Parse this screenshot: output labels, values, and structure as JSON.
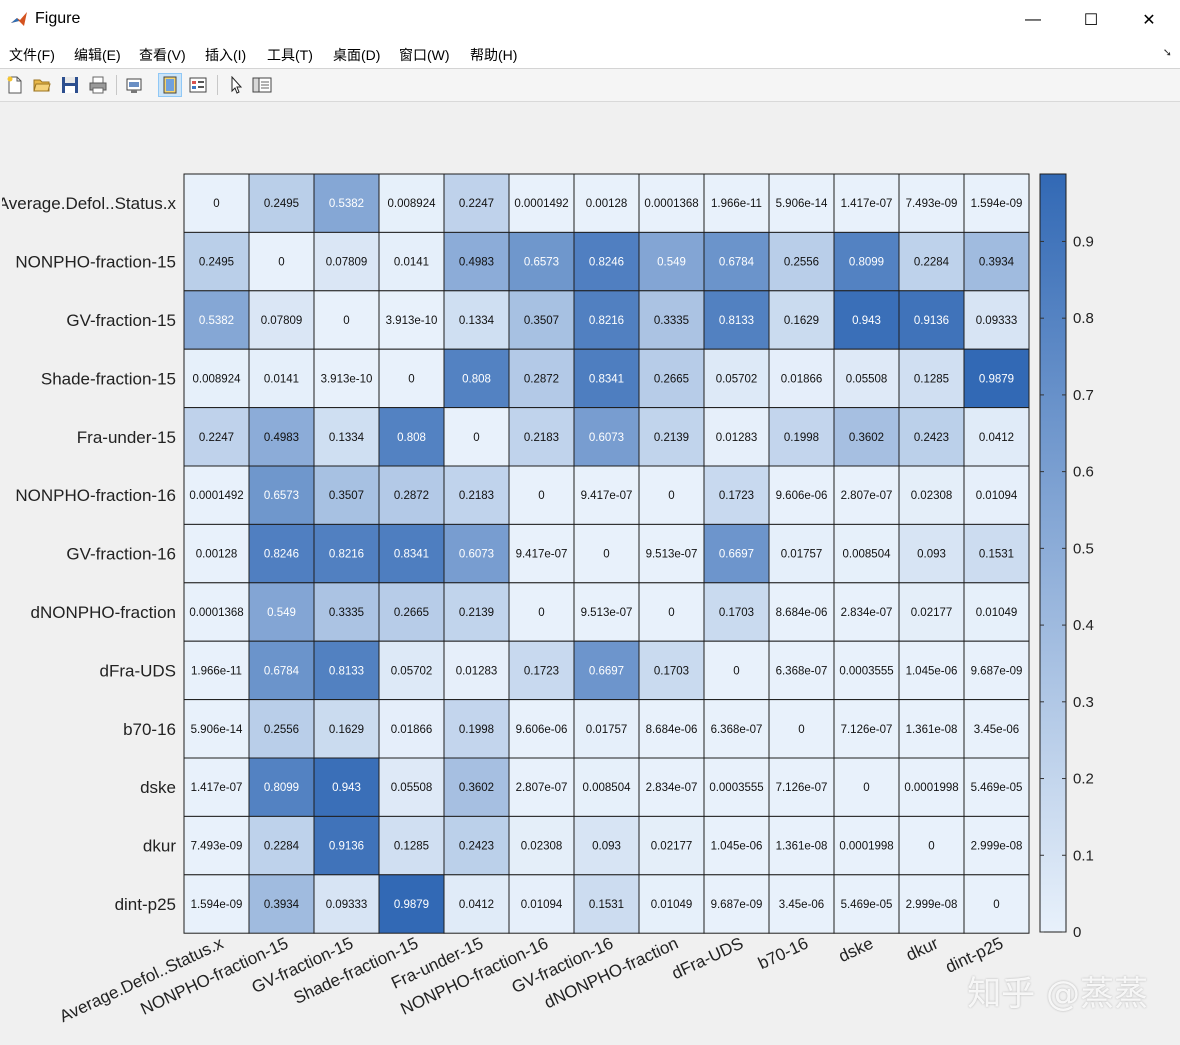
{
  "window": {
    "title": "Figure",
    "controls": {
      "minimize": "—",
      "maximize": "☐",
      "close": "✕"
    }
  },
  "menu": [
    "文件(F)",
    "编辑(E)",
    "查看(V)",
    "插入(I)",
    "工具(T)",
    "桌面(D)",
    "窗口(W)",
    "帮助(H)"
  ],
  "toolbar": [
    "new-figure-icon",
    "open-file-icon",
    "save-icon",
    "print-icon",
    "link-plot-icon",
    "hide-plot-tools-icon",
    "show-plot-tools-icon",
    "pointer-icon",
    "property-inspector-icon"
  ],
  "watermark": "知乎 @蒸蒸",
  "colors": {
    "low": "#e8f1fb",
    "high": "#3269b5",
    "grid": "#222222"
  },
  "chart_data": {
    "type": "heatmap",
    "labels": [
      "Average.Defol..Status.x",
      "NONPHO-fraction-15",
      "GV-fraction-15",
      "Shade-fraction-15",
      "Fra-under-15",
      "NONPHO-fraction-16",
      "GV-fraction-16",
      "dNONPHO-fraction",
      "dFra-UDS",
      "b70-16",
      "dske",
      "dkur",
      "dint-p25"
    ],
    "values": [
      [
        0,
        0.2495,
        0.5382,
        0.008924,
        0.2247,
        0.0001492,
        0.00128,
        0.0001368,
        1.966e-11,
        5.906e-14,
        1.417e-07,
        7.493e-09,
        1.594e-09
      ],
      [
        0.2495,
        0,
        0.07809,
        0.0141,
        0.4983,
        0.6573,
        0.8246,
        0.549,
        0.6784,
        0.2556,
        0.8099,
        0.2284,
        0.3934
      ],
      [
        0.5382,
        0.07809,
        0,
        3.913e-10,
        0.1334,
        0.3507,
        0.8216,
        0.3335,
        0.8133,
        0.1629,
        0.943,
        0.9136,
        0.09333
      ],
      [
        0.008924,
        0.0141,
        3.913e-10,
        0,
        0.808,
        0.2872,
        0.8341,
        0.2665,
        0.05702,
        0.01866,
        0.05508,
        0.1285,
        0.9879
      ],
      [
        0.2247,
        0.4983,
        0.1334,
        0.808,
        0,
        0.2183,
        0.6073,
        0.2139,
        0.01283,
        0.1998,
        0.3602,
        0.2423,
        0.0412
      ],
      [
        0.0001492,
        0.6573,
        0.3507,
        0.2872,
        0.2183,
        0,
        9.417e-07,
        0,
        0.1723,
        9.606e-06,
        2.807e-07,
        0.02308,
        0.01094
      ],
      [
        0.00128,
        0.8246,
        0.8216,
        0.8341,
        0.6073,
        9.417e-07,
        0,
        9.513e-07,
        0.6697,
        0.01757,
        0.008504,
        0.093,
        0.1531
      ],
      [
        0.0001368,
        0.549,
        0.3335,
        0.2665,
        0.2139,
        0,
        9.513e-07,
        0,
        0.1703,
        8.684e-06,
        2.834e-07,
        0.02177,
        0.01049
      ],
      [
        1.966e-11,
        0.6784,
        0.8133,
        0.05702,
        0.01283,
        0.1723,
        0.6697,
        0.1703,
        0,
        6.368e-07,
        0.0003555,
        1.045e-06,
        9.687e-09
      ],
      [
        5.906e-14,
        0.2556,
        0.1629,
        0.01866,
        0.1998,
        9.606e-06,
        0.01757,
        8.684e-06,
        6.368e-07,
        0,
        7.126e-07,
        1.361e-08,
        3.45e-06
      ],
      [
        1.417e-07,
        0.8099,
        0.943,
        0.05508,
        0.3602,
        2.807e-07,
        0.008504,
        2.834e-07,
        0.0003555,
        7.126e-07,
        0,
        0.0001998,
        5.469e-05
      ],
      [
        7.493e-09,
        0.2284,
        0.9136,
        0.1285,
        0.2423,
        0.02308,
        0.093,
        0.02177,
        1.045e-06,
        1.361e-08,
        0.0001998,
        0,
        2.999e-08
      ],
      [
        1.594e-09,
        0.3934,
        0.09333,
        0.9879,
        0.0412,
        0.01094,
        0.1531,
        0.01049,
        9.687e-09,
        3.45e-06,
        5.469e-05,
        2.999e-08,
        0
      ]
    ],
    "cell_text": [
      [
        "0",
        "0.2495",
        "0.5382",
        "0.008924",
        "0.2247",
        "0.0001492",
        "0.00128",
        "0.0001368",
        "1.966e-11",
        "5.906e-14",
        "1.417e-07",
        "7.493e-09",
        "1.594e-09"
      ],
      [
        "0.2495",
        "0",
        "0.07809",
        "0.0141",
        "0.4983",
        "0.6573",
        "0.8246",
        "0.549",
        "0.6784",
        "0.2556",
        "0.8099",
        "0.2284",
        "0.3934"
      ],
      [
        "0.5382",
        "0.07809",
        "0",
        "3.913e-10",
        "0.1334",
        "0.3507",
        "0.8216",
        "0.3335",
        "0.8133",
        "0.1629",
        "0.943",
        "0.9136",
        "0.09333"
      ],
      [
        "0.008924",
        "0.0141",
        "3.913e-10",
        "0",
        "0.808",
        "0.2872",
        "0.8341",
        "0.2665",
        "0.05702",
        "0.01866",
        "0.05508",
        "0.1285",
        "0.9879"
      ],
      [
        "0.2247",
        "0.4983",
        "0.1334",
        "0.808",
        "0",
        "0.2183",
        "0.6073",
        "0.2139",
        "0.01283",
        "0.1998",
        "0.3602",
        "0.2423",
        "0.0412"
      ],
      [
        "0.0001492",
        "0.6573",
        "0.3507",
        "0.2872",
        "0.2183",
        "0",
        "9.417e-07",
        "0",
        "0.1723",
        "9.606e-06",
        "2.807e-07",
        "0.02308",
        "0.01094"
      ],
      [
        "0.00128",
        "0.8246",
        "0.8216",
        "0.8341",
        "0.6073",
        "9.417e-07",
        "0",
        "9.513e-07",
        "0.6697",
        "0.01757",
        "0.008504",
        "0.093",
        "0.1531"
      ],
      [
        "0.0001368",
        "0.549",
        "0.3335",
        "0.2665",
        "0.2139",
        "0",
        "9.513e-07",
        "0",
        "0.1703",
        "8.684e-06",
        "2.834e-07",
        "0.02177",
        "0.01049"
      ],
      [
        "1.966e-11",
        "0.6784",
        "0.8133",
        "0.05702",
        "0.01283",
        "0.1723",
        "0.6697",
        "0.1703",
        "0",
        "6.368e-07",
        "0.0003555",
        "1.045e-06",
        "9.687e-09"
      ],
      [
        "5.906e-14",
        "0.2556",
        "0.1629",
        "0.01866",
        "0.1998",
        "9.606e-06",
        "0.01757",
        "8.684e-06",
        "6.368e-07",
        "0",
        "7.126e-07",
        "1.361e-08",
        "3.45e-06"
      ],
      [
        "1.417e-07",
        "0.8099",
        "0.943",
        "0.05508",
        "0.3602",
        "2.807e-07",
        "0.008504",
        "2.834e-07",
        "0.0003555",
        "7.126e-07",
        "0",
        "0.0001998",
        "5.469e-05"
      ],
      [
        "7.493e-09",
        "0.2284",
        "0.9136",
        "0.1285",
        "0.2423",
        "0.02308",
        "0.093",
        "0.02177",
        "1.045e-06",
        "1.361e-08",
        "0.0001998",
        "0",
        "2.999e-08"
      ],
      [
        "1.594e-09",
        "0.3934",
        "0.09333",
        "0.9879",
        "0.0412",
        "0.01094",
        "0.1531",
        "0.01049",
        "9.687e-09",
        "3.45e-06",
        "5.469e-05",
        "2.999e-08",
        "0"
      ]
    ],
    "colorbar": {
      "min": 0,
      "max": 0.9879,
      "ticks": [
        0,
        0.1,
        0.2,
        0.3,
        0.4,
        0.5,
        0.6,
        0.7,
        0.8,
        0.9
      ],
      "tick_labels": [
        "0",
        "0.1",
        "0.2",
        "0.3",
        "0.4",
        "0.5",
        "0.6",
        "0.7",
        "0.8",
        "0.9"
      ]
    },
    "title": "",
    "xlabel": "",
    "ylabel": ""
  }
}
